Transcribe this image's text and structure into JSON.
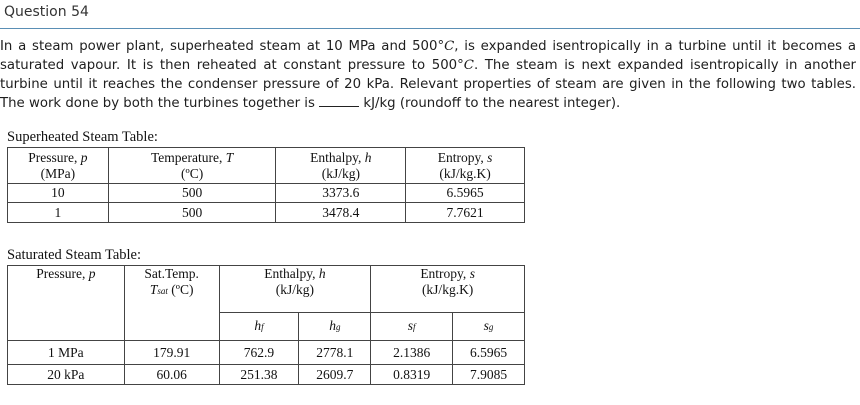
{
  "question": {
    "title": "Question 54",
    "text_parts": [
      "In a steam power plant, superheated steam at 10 MPa and 500°",
      "C",
      ", is expanded isentropically in a turbine until it becomes a saturated vapour. It is then reheated at constant pressure to 500°",
      "C",
      ". The steam is next expanded isentropically in another turbine until it reaches the condenser pressure of 20 kPa. Relevant properties of steam are given in the following two tables. The work done by both the turbines together is ",
      " kJ/kg (roundoff to the nearest integer)."
    ]
  },
  "superheated": {
    "caption": "Superheated Steam Table:",
    "headers": [
      {
        "name": "Pressure, ",
        "sym": "p",
        "unit": "(MPa)"
      },
      {
        "name": "Temperature, ",
        "sym": "T",
        "unit": "(ºC)"
      },
      {
        "name": "Enthalpy, ",
        "sym": "h",
        "unit": "(kJ/kg)"
      },
      {
        "name": "Entropy, ",
        "sym": "s",
        "unit": "(kJ/kg.K)"
      }
    ],
    "rows": [
      [
        "10",
        "500",
        "3373.6",
        "6.5965"
      ],
      [
        "1",
        "500",
        "3478.4",
        "7.7621"
      ]
    ]
  },
  "saturated": {
    "caption": "Saturated Steam Table:",
    "headers": {
      "pressure": {
        "name": "Pressure, ",
        "sym": "p"
      },
      "sat_temp": {
        "line1": "Sat.Temp.",
        "sym": "T",
        "sub": "sat",
        "unit": " (ºC)"
      },
      "enthalpy": {
        "name": "Enthalpy, ",
        "sym": "h",
        "unit": "(kJ/kg)"
      },
      "entropy": {
        "name": "Entropy, ",
        "sym": "s",
        "unit": "(kJ/kg.K)"
      }
    },
    "subheaders": {
      "hf": {
        "sym": "h",
        "sub": "f"
      },
      "hg": {
        "sym": "h",
        "sub": "g"
      },
      "sf": {
        "sym": "s",
        "sub": "f"
      },
      "sg": {
        "sym": "s",
        "sub": "g"
      }
    },
    "rows": [
      [
        "1 MPa",
        "179.91",
        "762.9",
        "2778.1",
        "2.1386",
        "6.5965"
      ],
      [
        "20 kPa",
        "60.06",
        "251.38",
        "2609.7",
        "0.8319",
        "7.9085"
      ]
    ]
  }
}
